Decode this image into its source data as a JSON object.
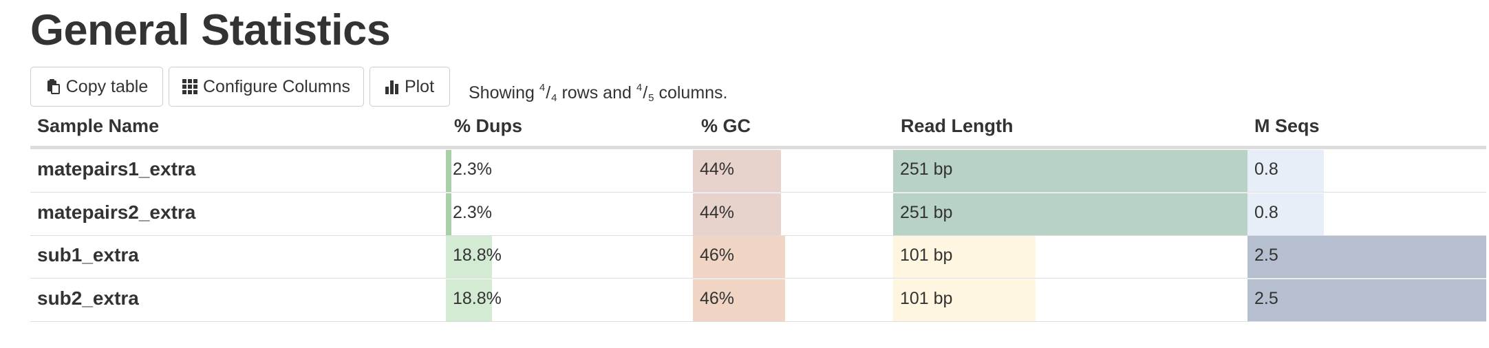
{
  "page": {
    "title": "General Statistics"
  },
  "toolbar": {
    "copy_label": "Copy table",
    "configure_label": "Configure Columns",
    "plot_label": "Plot",
    "showing_prefix": "Showing",
    "rows_shown": "4",
    "rows_total": "4",
    "rows_word": "rows and",
    "cols_shown": "4",
    "cols_total": "5",
    "cols_word": "columns."
  },
  "table": {
    "headers": [
      "Sample Name",
      "% Dups",
      "% GC",
      "Read Length",
      "M Seqs"
    ],
    "columns": [
      {
        "key": "dups",
        "color": "#8dc48c",
        "max": 100
      },
      {
        "key": "gc",
        "color": "#d9a597",
        "max": 100
      },
      {
        "key": "readlen",
        "color": "#5b9e78",
        "max": 251
      },
      {
        "key": "mseqs",
        "color": "#2c4471",
        "max": 2.5
      }
    ],
    "rows": [
      {
        "sample": "matepairs1_extra",
        "cells": [
          {
            "text": "2.3%",
            "value": 2.3,
            "color": "#a9d0a9",
            "alpha": 1.0
          },
          {
            "text": "44%",
            "value": 44,
            "color": "#e8d2cc",
            "alpha": 1.0
          },
          {
            "text": "251 bp",
            "value": 251,
            "color": "#b8d3c5",
            "alpha": 1.0
          },
          {
            "text": "0.8",
            "value": 0.8,
            "color": "#e7eef7",
            "alpha": 1.0
          }
        ]
      },
      {
        "sample": "matepairs2_extra",
        "cells": [
          {
            "text": "2.3%",
            "value": 2.3,
            "color": "#a9d0a9",
            "alpha": 1.0
          },
          {
            "text": "44%",
            "value": 44,
            "color": "#e8d2cc",
            "alpha": 1.0
          },
          {
            "text": "251 bp",
            "value": 251,
            "color": "#b8d3c5",
            "alpha": 1.0
          },
          {
            "text": "0.8",
            "value": 0.8,
            "color": "#e7eef7",
            "alpha": 1.0
          }
        ]
      },
      {
        "sample": "sub1_extra",
        "cells": [
          {
            "text": "18.8%",
            "value": 18.8,
            "color": "#d3ebd2",
            "alpha": 1.0
          },
          {
            "text": "46%",
            "value": 46,
            "color": "#f0d5c4",
            "alpha": 1.0
          },
          {
            "text": "101 bp",
            "value": 101,
            "color": "#fef6e1",
            "alpha": 1.0
          },
          {
            "text": "2.5",
            "value": 2.5,
            "color": "#b6bfd0",
            "alpha": 1.0
          }
        ]
      },
      {
        "sample": "sub2_extra",
        "cells": [
          {
            "text": "18.8%",
            "value": 18.8,
            "color": "#d3ebd2",
            "alpha": 1.0
          },
          {
            "text": "46%",
            "value": 46,
            "color": "#f0d5c4",
            "alpha": 1.0
          },
          {
            "text": "101 bp",
            "value": 101,
            "color": "#fef6e1",
            "alpha": 1.0
          },
          {
            "text": "2.5",
            "value": 2.5,
            "color": "#b6bfd0",
            "alpha": 1.0
          }
        ]
      }
    ]
  },
  "icons": {
    "copy": "clipboard-icon",
    "configure": "grid-icon",
    "plot": "bar-chart-icon"
  }
}
